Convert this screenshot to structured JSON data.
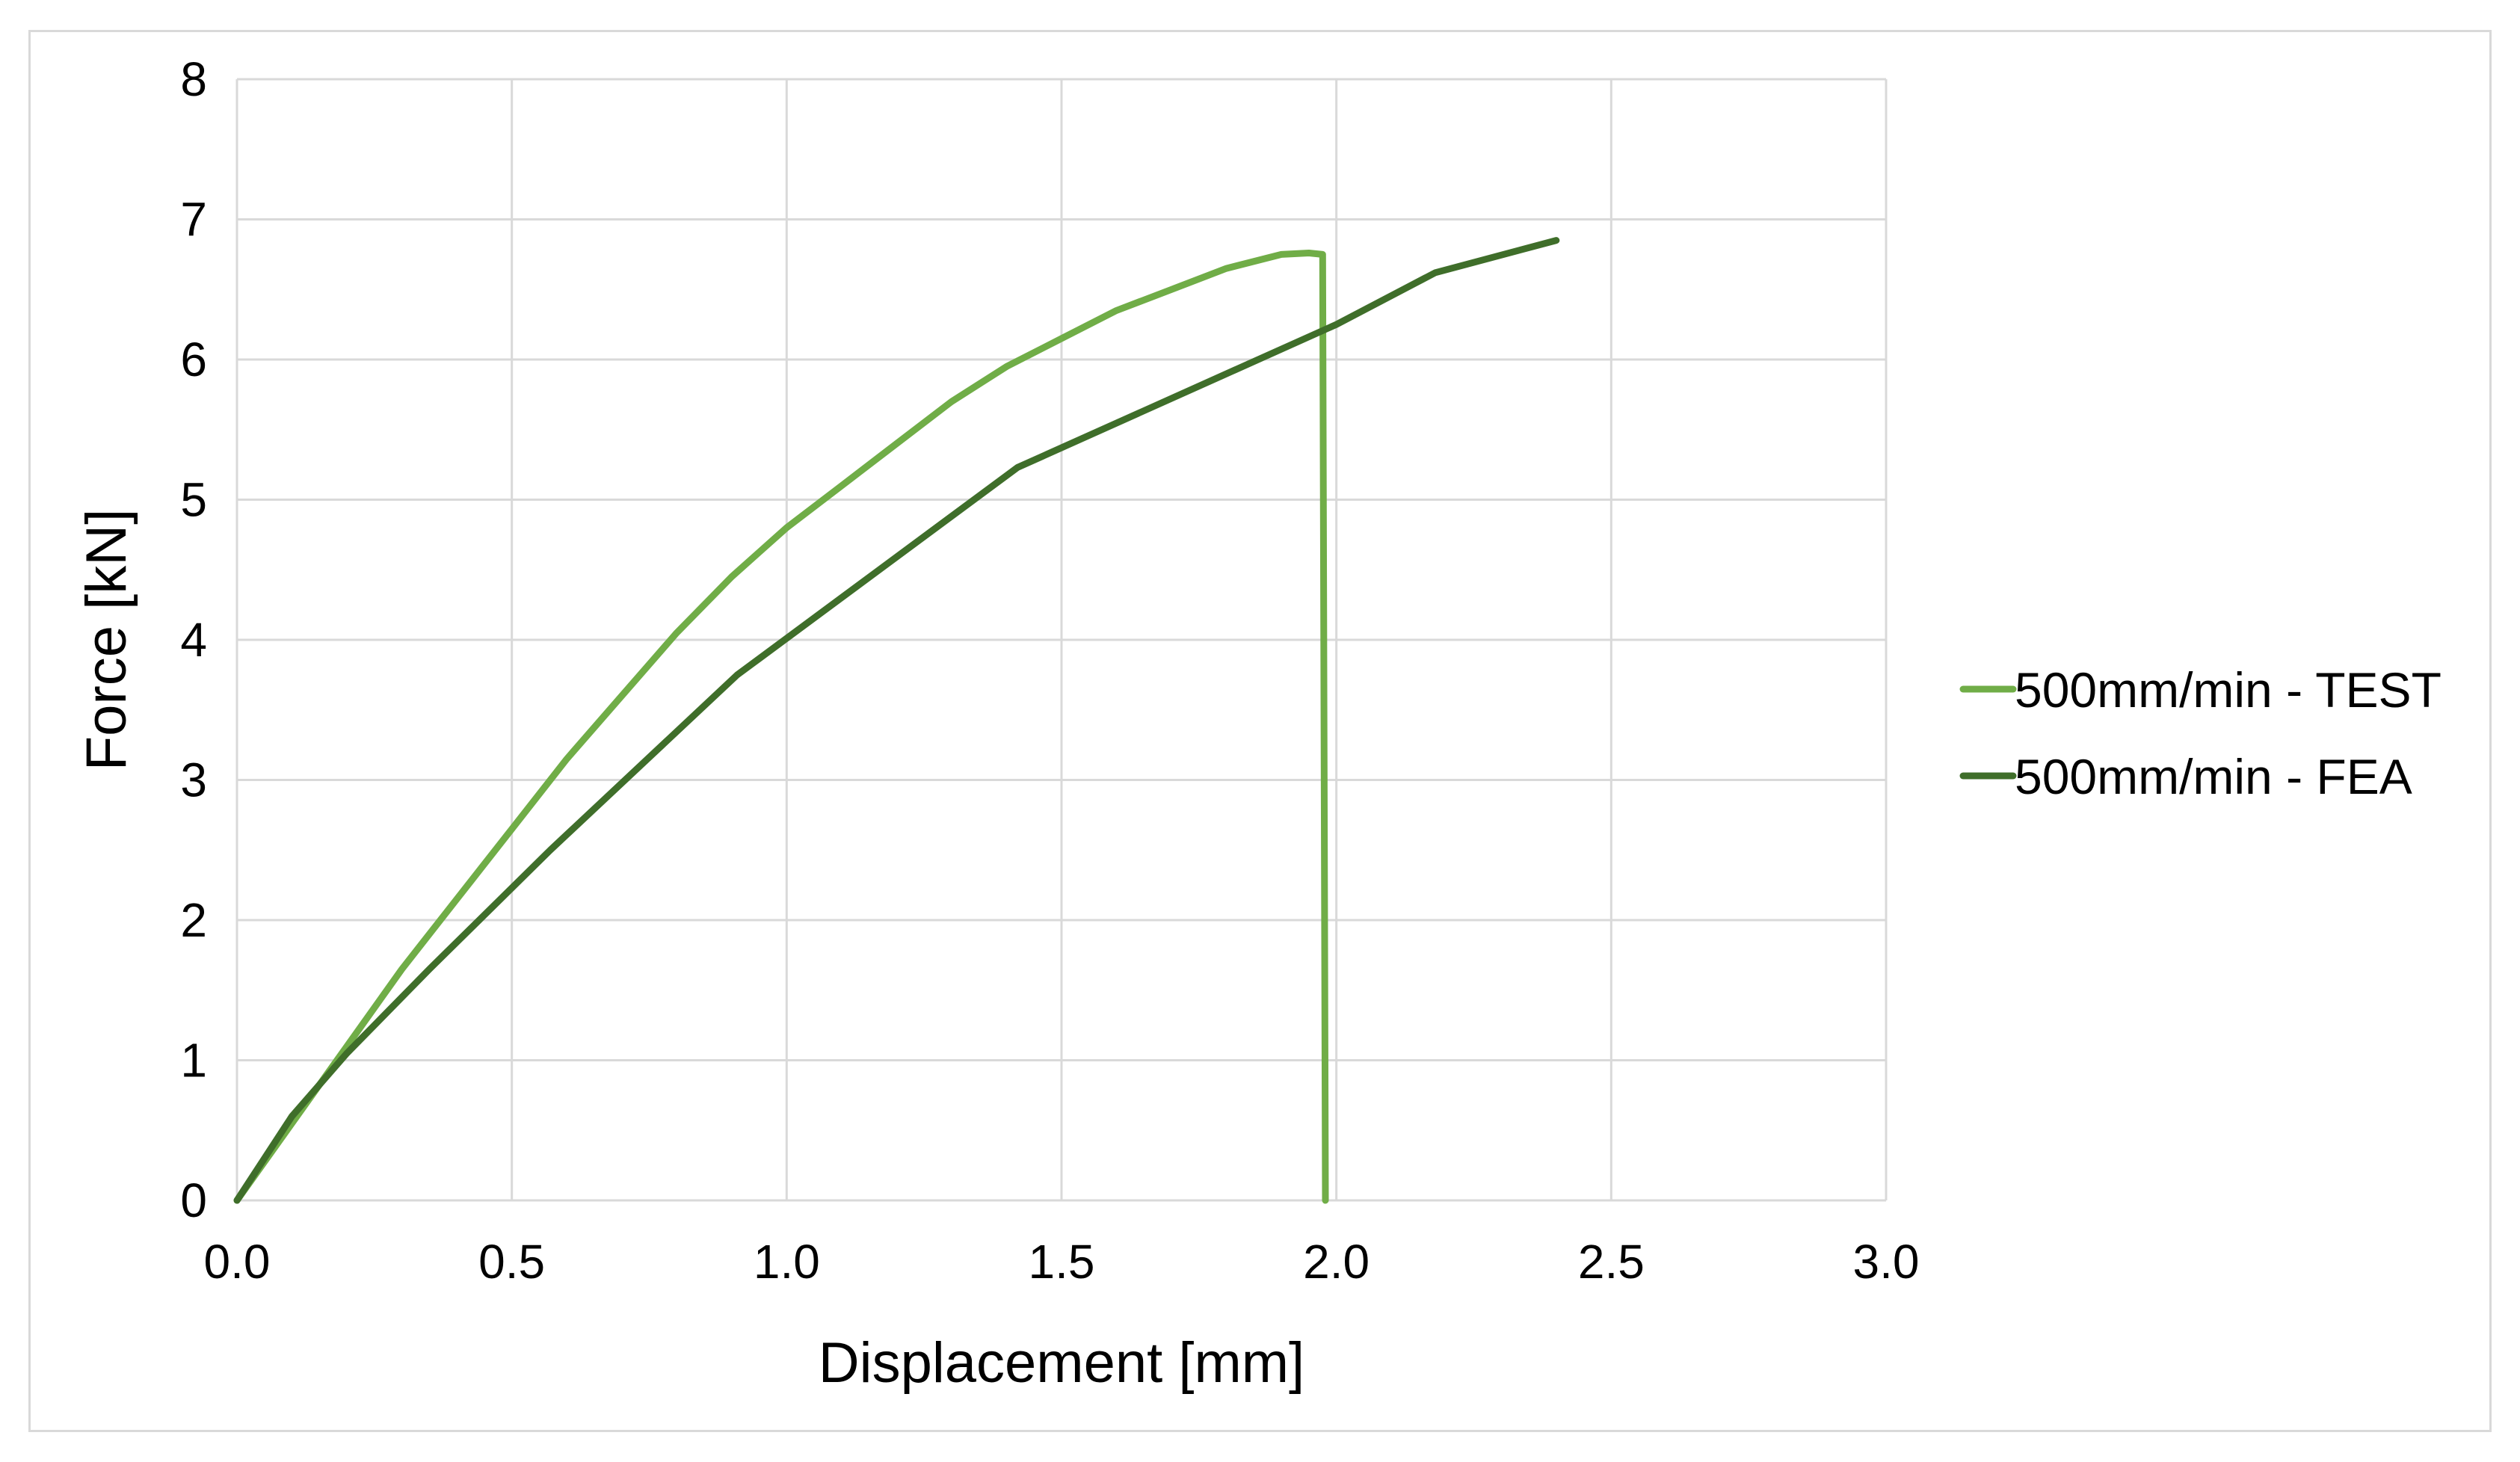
{
  "chart_data": {
    "type": "line",
    "title": "",
    "xlabel": "Displacement [mm]",
    "ylabel": "Force [kN]",
    "xlim": [
      0,
      3.0
    ],
    "ylim": [
      0,
      8
    ],
    "xticks": [
      "0.0",
      "0.5",
      "1.0",
      "1.5",
      "2.0",
      "2.5",
      "3.0"
    ],
    "yticks": [
      "0",
      "1",
      "2",
      "3",
      "4",
      "5",
      "6",
      "7",
      "8"
    ],
    "grid": true,
    "legend_position": "right",
    "series": [
      {
        "name": "500mm/min - TEST",
        "color": "#70ad47",
        "points": [
          [
            0.0,
            0.0
          ],
          [
            0.1,
            0.55
          ],
          [
            0.2,
            1.1
          ],
          [
            0.3,
            1.65
          ],
          [
            0.4,
            2.15
          ],
          [
            0.5,
            2.65
          ],
          [
            0.6,
            3.15
          ],
          [
            0.7,
            3.6
          ],
          [
            0.8,
            4.05
          ],
          [
            0.9,
            4.45
          ],
          [
            1.0,
            4.8
          ],
          [
            1.1,
            5.1
          ],
          [
            1.2,
            5.4
          ],
          [
            1.3,
            5.7
          ],
          [
            1.4,
            5.95
          ],
          [
            1.5,
            6.15
          ],
          [
            1.6,
            6.35
          ],
          [
            1.7,
            6.5
          ],
          [
            1.8,
            6.65
          ],
          [
            1.9,
            6.75
          ],
          [
            1.95,
            6.76
          ],
          [
            1.975,
            6.75
          ],
          [
            1.98,
            0.0
          ]
        ]
      },
      {
        "name": "500mm/min - FEA",
        "color": "#3f6e2a",
        "points": [
          [
            0.0,
            0.0
          ],
          [
            0.1,
            0.6
          ],
          [
            0.2,
            1.05
          ],
          [
            0.35,
            1.65
          ],
          [
            0.57,
            2.5
          ],
          [
            0.91,
            3.75
          ],
          [
            1.42,
            5.23
          ],
          [
            2.0,
            6.25
          ],
          [
            2.18,
            6.62
          ],
          [
            2.4,
            6.85
          ]
        ]
      }
    ]
  }
}
